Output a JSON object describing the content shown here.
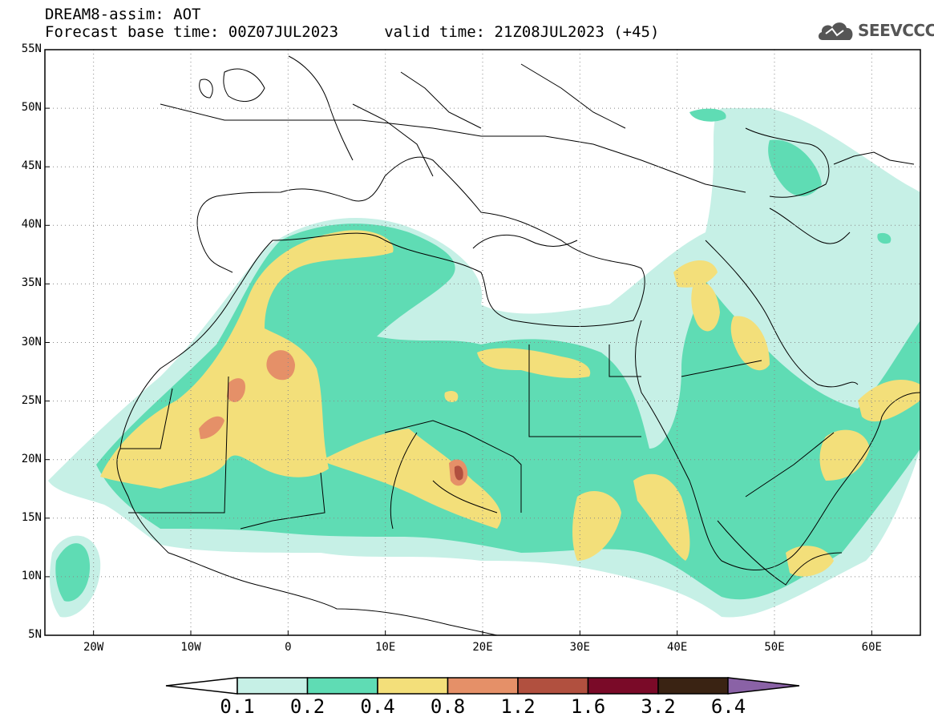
{
  "header": {
    "title_line1": "DREAM8-assim: AOT",
    "title_line2": "Forecast base time: 00Z07JUL2023     valid time: 21Z08JUL2023 (+45)",
    "logo_text": "SEEVCCC"
  },
  "map": {
    "latitude_labels": [
      "55N",
      "50N",
      "45N",
      "40N",
      "35N",
      "30N",
      "25N",
      "20N",
      "15N",
      "10N",
      "5N"
    ],
    "longitude_labels": [
      "20W",
      "10W",
      "0",
      "10E",
      "20E",
      "30E",
      "40E",
      "50E",
      "60E"
    ],
    "extent": {
      "lon_min": -25,
      "lon_max": 65,
      "lat_min": 5,
      "lat_max": 55
    }
  },
  "colorbar": {
    "labels": [
      "0.1",
      "0.2",
      "0.4",
      "0.8",
      "1.2",
      "1.6",
      "3.2",
      "6.4"
    ],
    "colors": [
      "#c6f0e6",
      "#5fdcb4",
      "#f3df7a",
      "#e59068",
      "#b1503f",
      "#7a0a28",
      "#3a2313",
      "#8a62a6"
    ]
  }
}
